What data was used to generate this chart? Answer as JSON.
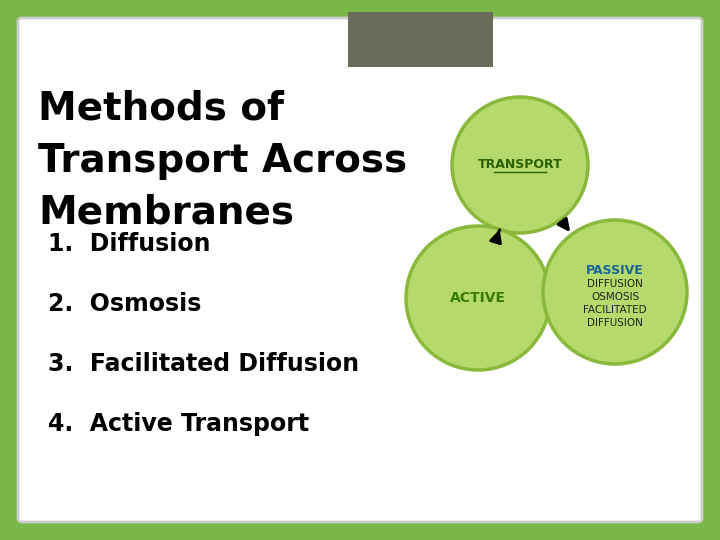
{
  "title_lines": [
    "Methods of",
    "Transport Across",
    "Membranes"
  ],
  "list_items": [
    "1.  Diffusion",
    "2.  Osmosis",
    "3.  Facilitated Diffusion",
    "4.  Active Transport"
  ],
  "bg_outer": "#7ab648",
  "bg_inner": "#ffffff",
  "bg_header_rect": "#6b6b5a",
  "circle_fill": "#b5d96b",
  "circle_edge": "#8ab83a",
  "transport_label": "TRANSPORT",
  "active_label": "ACTIVE",
  "passive_label": "PASSIVE",
  "passive_sub": [
    "DIFFUSION",
    "OSMOSIS",
    "FACILITATED",
    "DIFFUSION"
  ],
  "transport_color": "#2c5f00",
  "active_color": "#3a7a00",
  "passive_color": "#1a6699",
  "passive_sub_color": "#222222",
  "title_color": "#000000",
  "list_color": "#000000"
}
